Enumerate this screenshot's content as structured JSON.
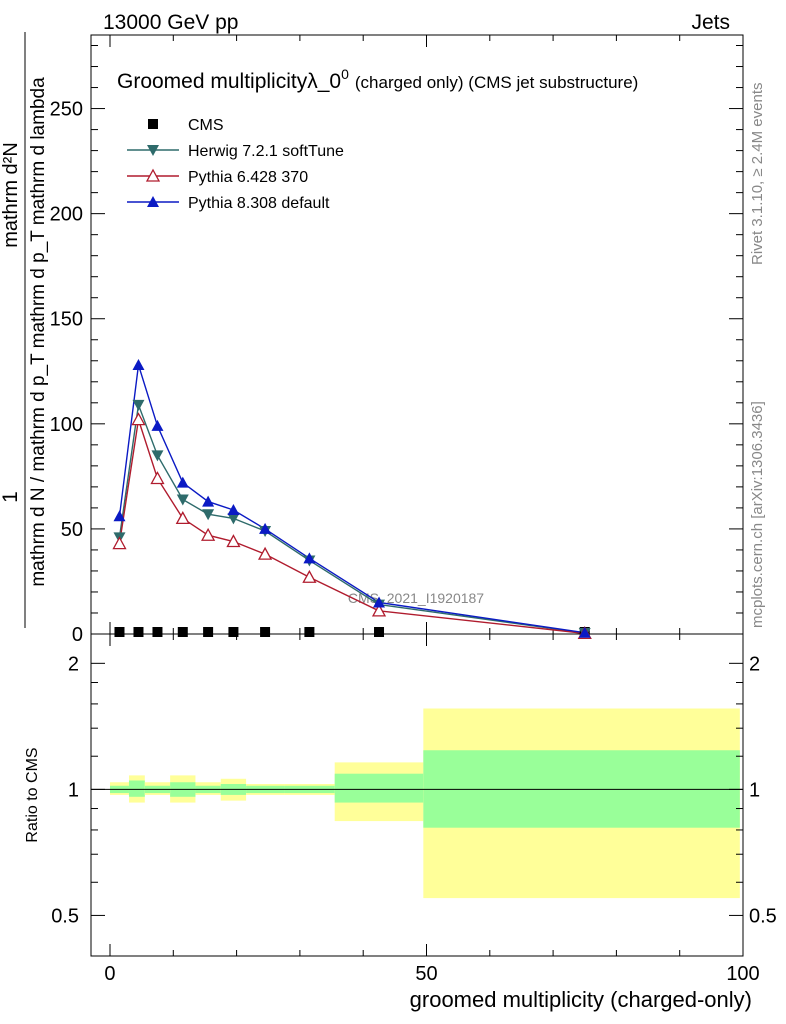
{
  "header": {
    "energy_label": "13000 GeV pp",
    "category_label": "Jets"
  },
  "side_labels": {
    "rivet": "Rivet 3.1.10, ≥ 2.4M events",
    "mcplots": "mcplots.cern.ch [arXiv:1306.3436]"
  },
  "chart_data": {
    "type": "line",
    "title": "Groomed multiplicityλ_0",
    "title_sup": "0",
    "title_suffix": "(charged only) (CMS jet substructure)",
    "watermark": "CMS_2021_I1920187",
    "ylabel_main": {
      "numerator": "mathrm d²N",
      "denominator": "mathrm d N / mathrm d p_T mathrm d p_T mathrm d lambda",
      "prefix": "1"
    },
    "ylabel_ratio": "Ratio to CMS",
    "xlabel": "groomed multiplicity (charged-only)",
    "xlim": [
      -3,
      100
    ],
    "ylim_main": [
      0,
      285
    ],
    "ylim_ratio": [
      0.4,
      2.35
    ],
    "xticks": [
      0,
      50,
      100
    ],
    "xtick_labels": [
      "0",
      "50",
      "100"
    ],
    "yticks_main": [
      0,
      50,
      100,
      150,
      200,
      250
    ],
    "ytick_labels_main": [
      "0",
      "50",
      "100",
      "150",
      "200",
      "250"
    ],
    "yticks_ratio": [
      0.5,
      1,
      2
    ],
    "ytick_labels_ratio": [
      "0.5",
      "1",
      "2"
    ],
    "x": [
      1.5,
      4.5,
      7.5,
      11.5,
      15.5,
      19.5,
      24.5,
      31.5,
      42.5,
      75
    ],
    "series": [
      {
        "name": "CMS",
        "color": "#000000",
        "marker": "square",
        "values": [
          0.8,
          0.8,
          0.8,
          0.8,
          0.8,
          0.8,
          0.8,
          0.8,
          0.8,
          0.2
        ]
      },
      {
        "name": "Herwig 7.2.1 softTune",
        "color": "#2e6b6b",
        "marker": "triangle-down",
        "values": [
          46,
          109,
          85,
          64,
          57,
          55,
          49,
          35,
          14,
          0.5
        ]
      },
      {
        "name": "Pythia 6.428 370",
        "color": "#b01c2e",
        "marker": "triangle-up-open",
        "values": [
          43,
          102,
          74,
          55,
          47,
          44,
          38,
          27,
          11,
          0.3
        ]
      },
      {
        "name": "Pythia 8.308 default",
        "color": "#0b1ac4",
        "marker": "triangle-up",
        "values": [
          56,
          128,
          99,
          72,
          63,
          59,
          50,
          36,
          15,
          0.6
        ]
      }
    ],
    "ratio_bands": {
      "outer_color": "#ffff99",
      "inner_color": "#99ff99",
      "bins": [
        {
          "x0": 0,
          "x1": 3,
          "lo_outer": 0.97,
          "hi_outer": 1.04,
          "lo_inner": 0.98,
          "hi_inner": 1.02
        },
        {
          "x0": 3,
          "x1": 5.5,
          "lo_outer": 0.93,
          "hi_outer": 1.08,
          "lo_inner": 0.96,
          "hi_inner": 1.05
        },
        {
          "x0": 5.5,
          "x1": 9.5,
          "lo_outer": 0.97,
          "hi_outer": 1.04,
          "lo_inner": 0.98,
          "hi_inner": 1.02
        },
        {
          "x0": 9.5,
          "x1": 13.5,
          "lo_outer": 0.93,
          "hi_outer": 1.08,
          "lo_inner": 0.96,
          "hi_inner": 1.04
        },
        {
          "x0": 13.5,
          "x1": 17.5,
          "lo_outer": 0.97,
          "hi_outer": 1.04,
          "lo_inner": 0.98,
          "hi_inner": 1.02
        },
        {
          "x0": 17.5,
          "x1": 21.5,
          "lo_outer": 0.94,
          "hi_outer": 1.06,
          "lo_inner": 0.97,
          "hi_inner": 1.03
        },
        {
          "x0": 21.5,
          "x1": 27.5,
          "lo_outer": 0.97,
          "hi_outer": 1.03,
          "lo_inner": 0.98,
          "hi_inner": 1.02
        },
        {
          "x0": 27.5,
          "x1": 35.5,
          "lo_outer": 0.97,
          "hi_outer": 1.03,
          "lo_inner": 0.98,
          "hi_inner": 1.02
        },
        {
          "x0": 35.5,
          "x1": 49.5,
          "lo_outer": 0.84,
          "hi_outer": 1.16,
          "lo_inner": 0.93,
          "hi_inner": 1.09
        },
        {
          "x0": 49.5,
          "x1": 99.5,
          "lo_outer": 0.55,
          "hi_outer": 1.56,
          "lo_inner": 0.81,
          "hi_inner": 1.24
        }
      ]
    }
  }
}
